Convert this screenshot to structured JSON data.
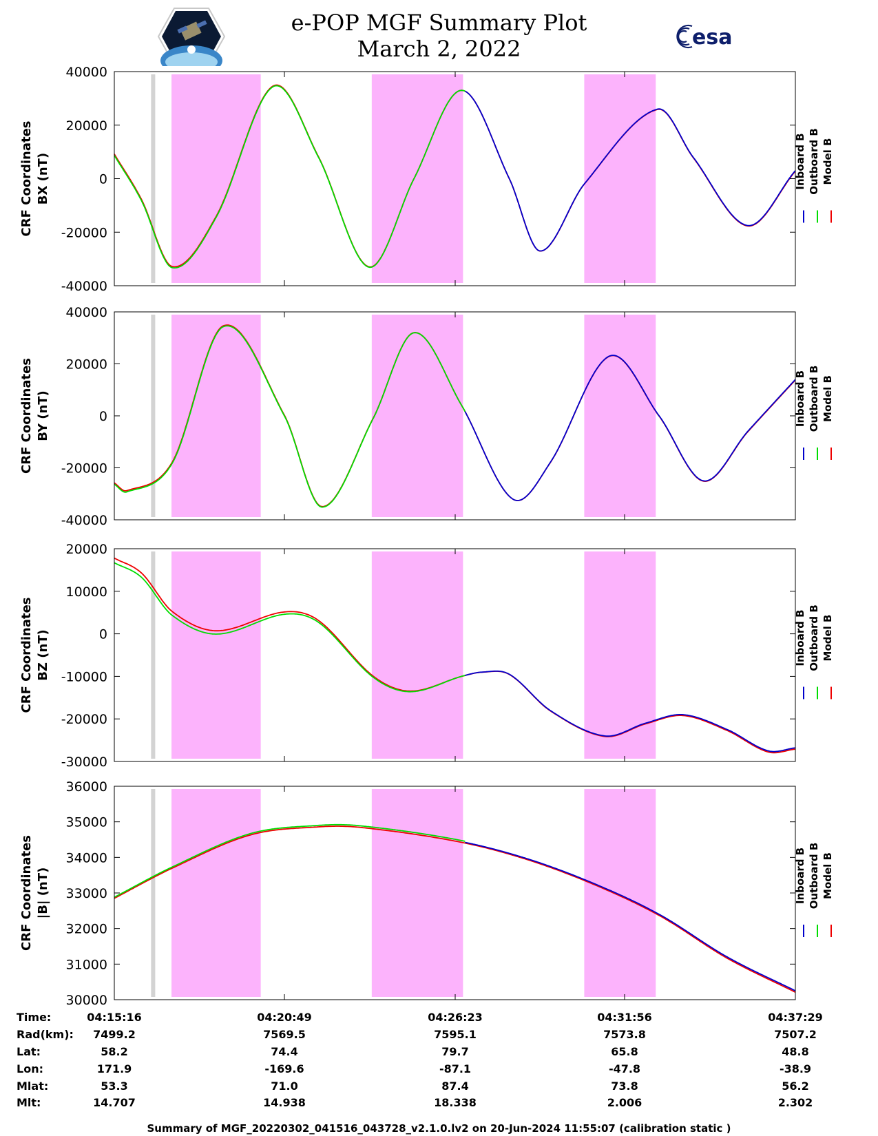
{
  "header": {
    "title_line1": "e-POP MGF Summary Plot",
    "title_line2": "March 2, 2022",
    "left_logo": "cassiope-satellite-logo",
    "right_logo_text": "esa",
    "right_logo_color": "#0e1f6b"
  },
  "colors": {
    "inboard": "#0000cc",
    "outboard": "#00dd00",
    "model": "#ee0000",
    "highlight": "#fcb3fc",
    "gap_marker": "#d3d3d3"
  },
  "chart_data": [
    {
      "type": "line",
      "ylabel_line1": "CRF Coordinates",
      "ylabel_line2": "BX (nT)",
      "ylim": [
        -40000,
        40000
      ],
      "yticks": [
        "40000",
        "20000",
        "0",
        "-20000",
        "-40000"
      ],
      "ytick_values": [
        40000,
        20000,
        0,
        -20000,
        -40000
      ],
      "legend": [
        "Inboard B",
        "Outboard B",
        "Model B"
      ],
      "knots": [
        [
          0.0,
          9000
        ],
        [
          0.04,
          -8000
        ],
        [
          0.085,
          -33000
        ],
        [
          0.15,
          -14000
        ],
        [
          0.233,
          34500
        ],
        [
          0.3,
          8000
        ],
        [
          0.374,
          -33000
        ],
        [
          0.44,
          0
        ],
        [
          0.51,
          33000
        ],
        [
          0.58,
          0
        ],
        [
          0.625,
          -27000
        ],
        [
          0.69,
          -2000
        ],
        [
          0.798,
          26000
        ],
        [
          0.85,
          8000
        ],
        [
          0.93,
          -17500
        ],
        [
          1.0,
          3000
        ]
      ],
      "outboard_offset": [
        -300,
        300
      ],
      "model_offset": [
        200,
        -200
      ]
    },
    {
      "type": "line",
      "ylabel_line1": "CRF Coordinates",
      "ylabel_line2": "BY (nT)",
      "ylim": [
        -40000,
        40000
      ],
      "yticks": [
        "40000",
        "20000",
        "0",
        "-20000",
        "-40000"
      ],
      "ytick_values": [
        40000,
        20000,
        0,
        -20000,
        -40000
      ],
      "legend": [
        "Inboard B",
        "Outboard B",
        "Model B"
      ],
      "knots": [
        [
          0.0,
          -26000
        ],
        [
          0.018,
          -29000
        ],
        [
          0.085,
          -18000
        ],
        [
          0.16,
          34500
        ],
        [
          0.25,
          0
        ],
        [
          0.305,
          -35000
        ],
        [
          0.38,
          -1000
        ],
        [
          0.44,
          32000
        ],
        [
          0.51,
          4000
        ],
        [
          0.585,
          -32000
        ],
        [
          0.64,
          -18000
        ],
        [
          0.727,
          23000
        ],
        [
          0.8,
          0
        ],
        [
          0.865,
          -25000
        ],
        [
          0.93,
          -6000
        ],
        [
          1.0,
          14000
        ]
      ],
      "outboard_offset": [
        -300,
        300
      ],
      "model_offset": [
        200,
        -200
      ]
    },
    {
      "type": "line",
      "ylabel_line1": "CRF Coordinates",
      "ylabel_line2": "BZ (nT)",
      "ylim": [
        -30000,
        20000
      ],
      "yticks": [
        "20000",
        "10000",
        "0",
        "-10000",
        "-20000",
        "-30000"
      ],
      "ytick_values": [
        20000,
        10000,
        0,
        -10000,
        -20000,
        -30000
      ],
      "legend": [
        "Inboard B",
        "Outboard B",
        "Model B"
      ],
      "knots": [
        [
          0.0,
          17500
        ],
        [
          0.04,
          14000
        ],
        [
          0.085,
          5000
        ],
        [
          0.15,
          500
        ],
        [
          0.25,
          5000
        ],
        [
          0.3,
          3000
        ],
        [
          0.38,
          -10000
        ],
        [
          0.435,
          -13500
        ],
        [
          0.51,
          -10000
        ],
        [
          0.54,
          -9000
        ],
        [
          0.58,
          -9500
        ],
        [
          0.64,
          -18000
        ],
        [
          0.72,
          -24000
        ],
        [
          0.78,
          -21000
        ],
        [
          0.835,
          -19000
        ],
        [
          0.9,
          -22500
        ],
        [
          0.96,
          -27500
        ],
        [
          1.0,
          -26800
        ]
      ],
      "outboard_offset": [
        -800,
        800
      ],
      "model_offset": [
        300,
        -300
      ]
    },
    {
      "type": "line",
      "ylabel_line1": "CRF Coordinates",
      "ylabel_line2": "|B| (nT)",
      "ylim": [
        30000,
        36000
      ],
      "yticks": [
        "36000",
        "35000",
        "34000",
        "33000",
        "32000",
        "31000",
        "30000"
      ],
      "ytick_values": [
        36000,
        35000,
        34000,
        33000,
        32000,
        31000,
        30000
      ],
      "legend": [
        "Inboard B",
        "Outboard B",
        "Model B"
      ],
      "knots": [
        [
          0.0,
          32850
        ],
        [
          0.085,
          33700
        ],
        [
          0.2,
          34640
        ],
        [
          0.3,
          34870
        ],
        [
          0.36,
          34860
        ],
        [
          0.5,
          34480
        ],
        [
          0.6,
          34000
        ],
        [
          0.7,
          33300
        ],
        [
          0.8,
          32400
        ],
        [
          0.9,
          31200
        ],
        [
          1.0,
          30250
        ]
      ],
      "outboard_offset": [
        30,
        30
      ],
      "model_offset": [
        0,
        -40
      ]
    }
  ],
  "shared_chart": {
    "time_range_sec": [
      0,
      1333
    ],
    "gap_marker_frac": 0.057,
    "highlight_bands_frac": [
      [
        0.084,
        0.215
      ],
      [
        0.378,
        0.512
      ],
      [
        0.69,
        0.795
      ]
    ]
  },
  "ephemeris": {
    "labels": [
      "Time:",
      "Rad(km):",
      "Lat:",
      "Lon:",
      "Mlat:",
      "Mlt:"
    ],
    "columns": [
      [
        "04:15:16",
        "7499.2",
        "58.2",
        "171.9",
        "53.3",
        "14.707"
      ],
      [
        "04:20:49",
        "7569.5",
        "74.4",
        "-169.6",
        "71.0",
        "14.938"
      ],
      [
        "04:26:23",
        "7595.1",
        "79.7",
        "-87.1",
        "87.4",
        "18.338"
      ],
      [
        "04:31:56",
        "7573.8",
        "65.8",
        "-47.8",
        "73.8",
        "2.006"
      ],
      [
        "04:37:29",
        "7507.2",
        "48.8",
        "-38.9",
        "56.2",
        "2.302"
      ]
    ]
  },
  "footer": {
    "text": "Summary of MGF_20220302_041516_043728_v2.1.0.lv2 on 20-Jun-2024 11:55:07 (calibration static )"
  }
}
